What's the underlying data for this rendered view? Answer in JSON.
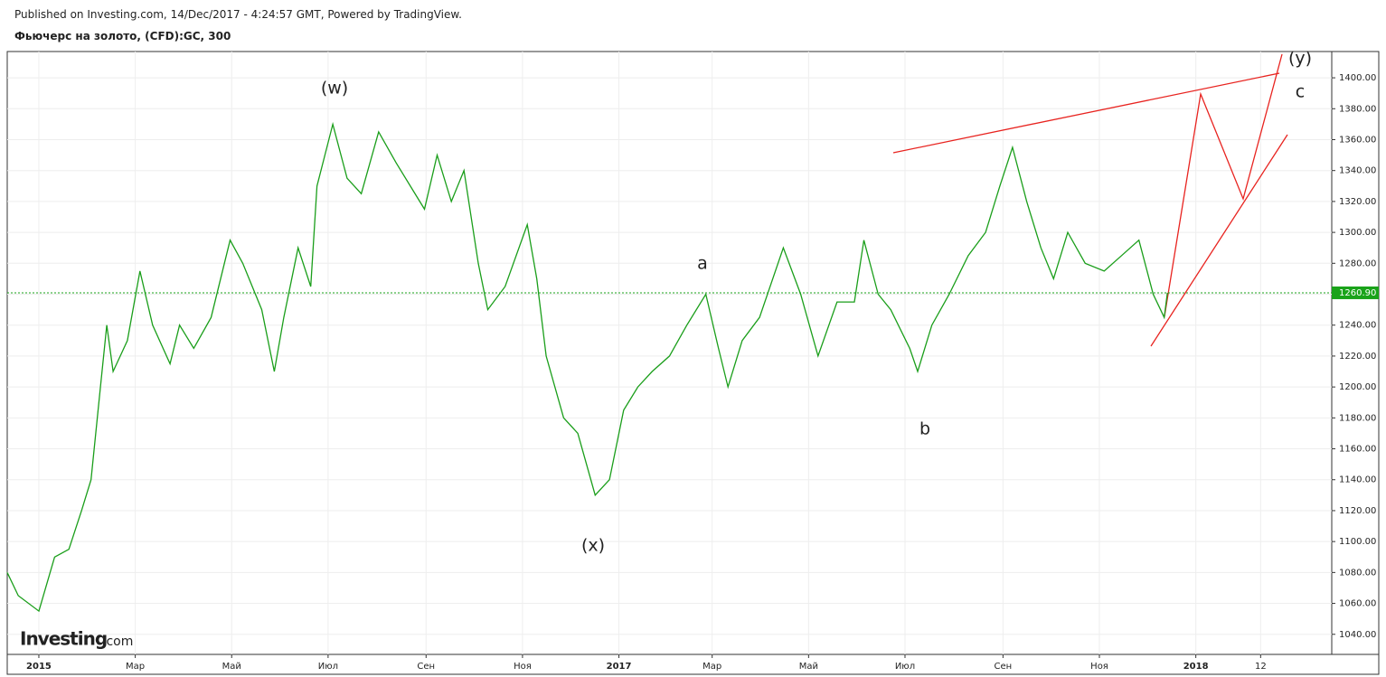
{
  "header": {
    "published": "Published on Investing.com, 14/Dec/2017 - 4:24:57 GMT, Powered by TradingView.",
    "symbol": "Фьючерс на золото, (CFD):GC, 300"
  },
  "logo": {
    "brand": "Investing",
    "suffix": ".com"
  },
  "chart_data": {
    "type": "line",
    "x": [
      "2015-12-11",
      "2015-12-18",
      "2015-12-31",
      "2016-01-10",
      "2016-01-19",
      "2016-01-27",
      "2016-02-02",
      "2016-02-08",
      "2016-02-12",
      "2016-02-16",
      "2016-02-25",
      "2016-03-04",
      "2016-03-12",
      "2016-03-23",
      "2016-03-29",
      "2016-04-07",
      "2016-04-18",
      "2016-04-30",
      "2016-05-08",
      "2016-05-20",
      "2016-05-28",
      "2016-06-03",
      "2016-06-12",
      "2016-06-20",
      "2016-06-24",
      "2016-07-04",
      "2016-07-13",
      "2016-07-22",
      "2016-08-02",
      "2016-08-13",
      "2016-08-31",
      "2016-09-08",
      "2016-09-17",
      "2016-09-25",
      "2016-10-04",
      "2016-10-10",
      "2016-10-21",
      "2016-11-04",
      "2016-11-10",
      "2016-11-16",
      "2016-11-27",
      "2016-12-06",
      "2016-12-17",
      "2016-12-26",
      "2017-01-04",
      "2017-01-13",
      "2017-01-22",
      "2017-02-02",
      "2017-02-13",
      "2017-02-25",
      "2017-03-05",
      "2017-03-11",
      "2017-03-20",
      "2017-03-31",
      "2017-04-15",
      "2017-04-26",
      "2017-05-07",
      "2017-05-19",
      "2017-05-30",
      "2017-06-05",
      "2017-06-14",
      "2017-06-22",
      "2017-07-04",
      "2017-07-09",
      "2017-07-18",
      "2017-07-29",
      "2017-08-10",
      "2017-08-21",
      "2017-08-30",
      "2017-09-07",
      "2017-09-16",
      "2017-09-25",
      "2017-10-03",
      "2017-10-12",
      "2017-10-23",
      "2017-11-04",
      "2017-11-15",
      "2017-11-26",
      "2017-12-05",
      "2017-12-12",
      "2017-12-14"
    ],
    "series": [
      {
        "name": "GC",
        "color": "#1a9e1a",
        "values": [
          1080,
          1065,
          1055,
          1090,
          1095,
          1120,
          1140,
          1200,
          1240,
          1210,
          1230,
          1275,
          1240,
          1215,
          1240,
          1225,
          1245,
          1295,
          1280,
          1250,
          1210,
          1245,
          1290,
          1265,
          1330,
          1370,
          1335,
          1325,
          1365,
          1345,
          1315,
          1350,
          1320,
          1340,
          1280,
          1250,
          1265,
          1305,
          1270,
          1220,
          1180,
          1170,
          1130,
          1140,
          1185,
          1200,
          1210,
          1220,
          1240,
          1260,
          1225,
          1200,
          1230,
          1245,
          1290,
          1260,
          1220,
          1255,
          1255,
          1295,
          1260,
          1250,
          1225,
          1210,
          1240,
          1260,
          1285,
          1300,
          1330,
          1355,
          1320,
          1290,
          1270,
          1300,
          1280,
          1275,
          1285,
          1295,
          1260,
          1245,
          1260.9
        ]
      }
    ],
    "xlim": [
      "2015-12-11",
      "2018-03-28"
    ],
    "xticks": [
      {
        "value": "2015-12-31",
        "label": "2015"
      },
      {
        "value": "2016-03-01",
        "label": "Мар"
      },
      {
        "value": "2016-05-01",
        "label": "Май"
      },
      {
        "value": "2016-07-01",
        "label": "Июл"
      },
      {
        "value": "2016-09-01",
        "label": "Сен"
      },
      {
        "value": "2016-11-01",
        "label": "Ноя"
      },
      {
        "value": "2017-01-01",
        "label": "2017"
      },
      {
        "value": "2017-03-01",
        "label": "Мар"
      },
      {
        "value": "2017-05-01",
        "label": "Май"
      },
      {
        "value": "2017-07-01",
        "label": "Июл"
      },
      {
        "value": "2017-09-01",
        "label": "Сен"
      },
      {
        "value": "2017-11-01",
        "label": "Ноя"
      },
      {
        "value": "2018-01-01",
        "label": "2018"
      },
      {
        "value": "2018-02-11",
        "label": "12"
      }
    ],
    "ylim": [
      1027,
      1417
    ],
    "yticks": [
      {
        "value": 1040,
        "label": "1040.00"
      },
      {
        "value": 1060,
        "label": "1060.00"
      },
      {
        "value": 1080,
        "label": "1080.00"
      },
      {
        "value": 1100,
        "label": "1100.00"
      },
      {
        "value": 1120,
        "label": "1120.00"
      },
      {
        "value": 1140,
        "label": "1140.00"
      },
      {
        "value": 1160,
        "label": "1160.00"
      },
      {
        "value": 1180,
        "label": "1180.00"
      },
      {
        "value": 1200,
        "label": "1200.00"
      },
      {
        "value": 1220,
        "label": "1220.00"
      },
      {
        "value": 1240,
        "label": "1240.00"
      },
      {
        "value": 1260,
        "label": "1260.00"
      },
      {
        "value": 1280,
        "label": "1280.00"
      },
      {
        "value": 1300,
        "label": "1300.00"
      },
      {
        "value": 1320,
        "label": "1320.00"
      },
      {
        "value": 1340,
        "label": "1340.00"
      },
      {
        "value": 1360,
        "label": "1360.00"
      },
      {
        "value": 1380,
        "label": "1380.00"
      },
      {
        "value": 1400,
        "label": "1400.00"
      }
    ],
    "last_price": {
      "value": 1260.9,
      "label": "1260.90"
    },
    "grid": true,
    "annotations": [
      "(w)",
      "(x)",
      "a",
      "b",
      "c",
      "(y)"
    ]
  }
}
